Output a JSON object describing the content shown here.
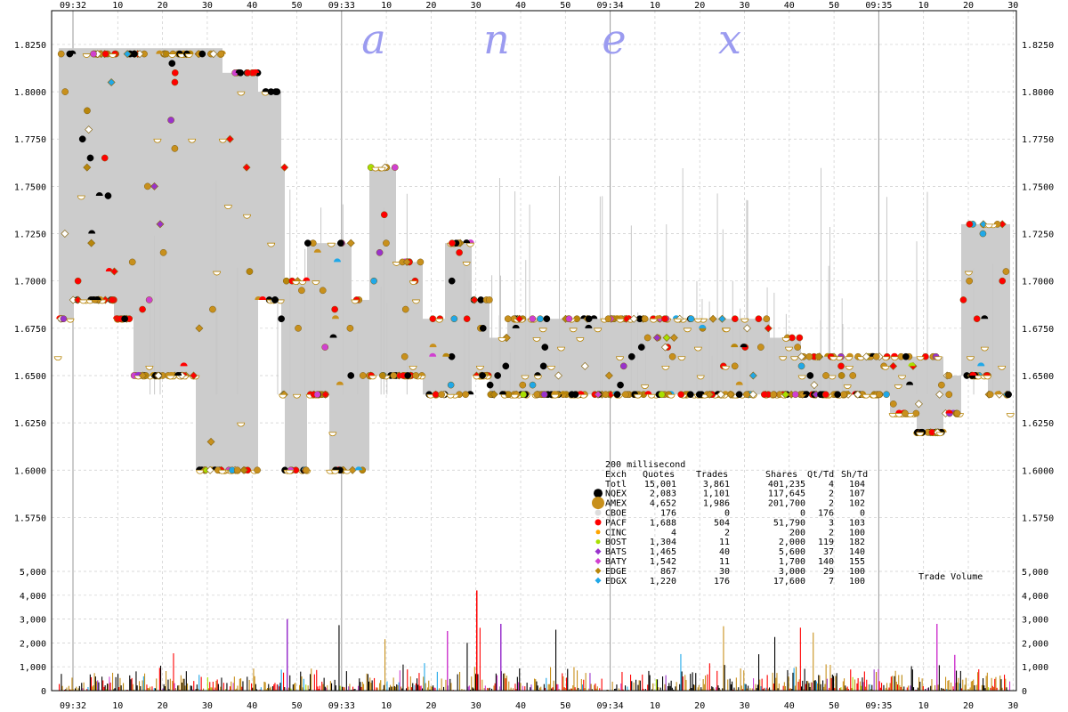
{
  "chart_data": {
    "type": "scatter",
    "watermark": [
      "a",
      "n",
      "e",
      "x"
    ],
    "time_ticks": [
      "09:32",
      "10",
      "20",
      "30",
      "40",
      "50",
      "09:33",
      "10",
      "20",
      "30",
      "40",
      "50",
      "09:34",
      "10",
      "20",
      "30",
      "40",
      "50",
      "09:35",
      "10",
      "20",
      "30"
    ],
    "price_axis": {
      "ticks": [
        "1.8250",
        "1.8000",
        "1.7750",
        "1.7500",
        "1.7250",
        "1.7000",
        "1.6750",
        "1.6500",
        "1.6250",
        "1.6000",
        "1.5750"
      ],
      "ylim": [
        1.5625,
        1.8325
      ]
    },
    "volume_axis": {
      "ticks": [
        "5,000",
        "4,000",
        "3,000",
        "2,000",
        "1,000",
        "0"
      ],
      "ylim": [
        0,
        5000
      ],
      "label": "Trade Volume"
    },
    "legend": {
      "interval": "200 millisecond",
      "headers": [
        "Exch",
        "Quotes",
        "Trades",
        "Shares",
        "Qt/Td",
        "Sh/Td"
      ],
      "rows": [
        {
          "exch": "Totl",
          "quotes": "15,001",
          "trades": "3,861",
          "shares": "401,235",
          "qt_td": "4",
          "sh_td": "104",
          "color": ""
        },
        {
          "exch": "NQEX",
          "quotes": "2,083",
          "trades": "1,101",
          "shares": "117,645",
          "qt_td": "2",
          "sh_td": "107",
          "color": "#000000",
          "shape": "circle-lg"
        },
        {
          "exch": "AMEX",
          "quotes": "4,652",
          "trades": "1,986",
          "shares": "201,700",
          "qt_td": "2",
          "sh_td": "102",
          "color": "#c8901c",
          "shape": "circle-xl"
        },
        {
          "exch": "CBOE",
          "quotes": "176",
          "trades": "0",
          "shares": "0",
          "qt_td": "176",
          "sh_td": "0",
          "color": "#dddddd",
          "shape": "circle"
        },
        {
          "exch": "PACF",
          "quotes": "1,688",
          "trades": "504",
          "shares": "51,790",
          "qt_td": "3",
          "sh_td": "103",
          "color": "#ff0000",
          "shape": "circle"
        },
        {
          "exch": "CINC",
          "quotes": "4",
          "trades": "2",
          "shares": "200",
          "qt_td": "2",
          "sh_td": "100",
          "color": "#ffa500",
          "shape": "circle-sm"
        },
        {
          "exch": "BOST",
          "quotes": "1,304",
          "trades": "11",
          "shares": "2,000",
          "qt_td": "119",
          "sh_td": "182",
          "color": "#a8e000",
          "shape": "circle-sm"
        },
        {
          "exch": "BATS",
          "quotes": "1,465",
          "trades": "40",
          "shares": "5,600",
          "qt_td": "37",
          "sh_td": "140",
          "color": "#9932cc",
          "shape": "diamond"
        },
        {
          "exch": "BATY",
          "quotes": "1,542",
          "trades": "11",
          "shares": "1,700",
          "qt_td": "140",
          "sh_td": "155",
          "color": "#d040d0",
          "shape": "diamond"
        },
        {
          "exch": "EDGE",
          "quotes": "867",
          "trades": "30",
          "shares": "3,000",
          "qt_td": "29",
          "sh_td": "100",
          "color": "#b8860b",
          "shape": "diamond"
        },
        {
          "exch": "EDGX",
          "quotes": "1,220",
          "trades": "176",
          "shares": "17,600",
          "qt_td": "7",
          "sh_td": "100",
          "color": "#20a8e8",
          "shape": "diamond"
        }
      ]
    },
    "grid": true,
    "colors": {
      "spread_fill": "#cccccc",
      "grid": "#bbbbbb",
      "watermark": "#9b9bf0"
    }
  }
}
